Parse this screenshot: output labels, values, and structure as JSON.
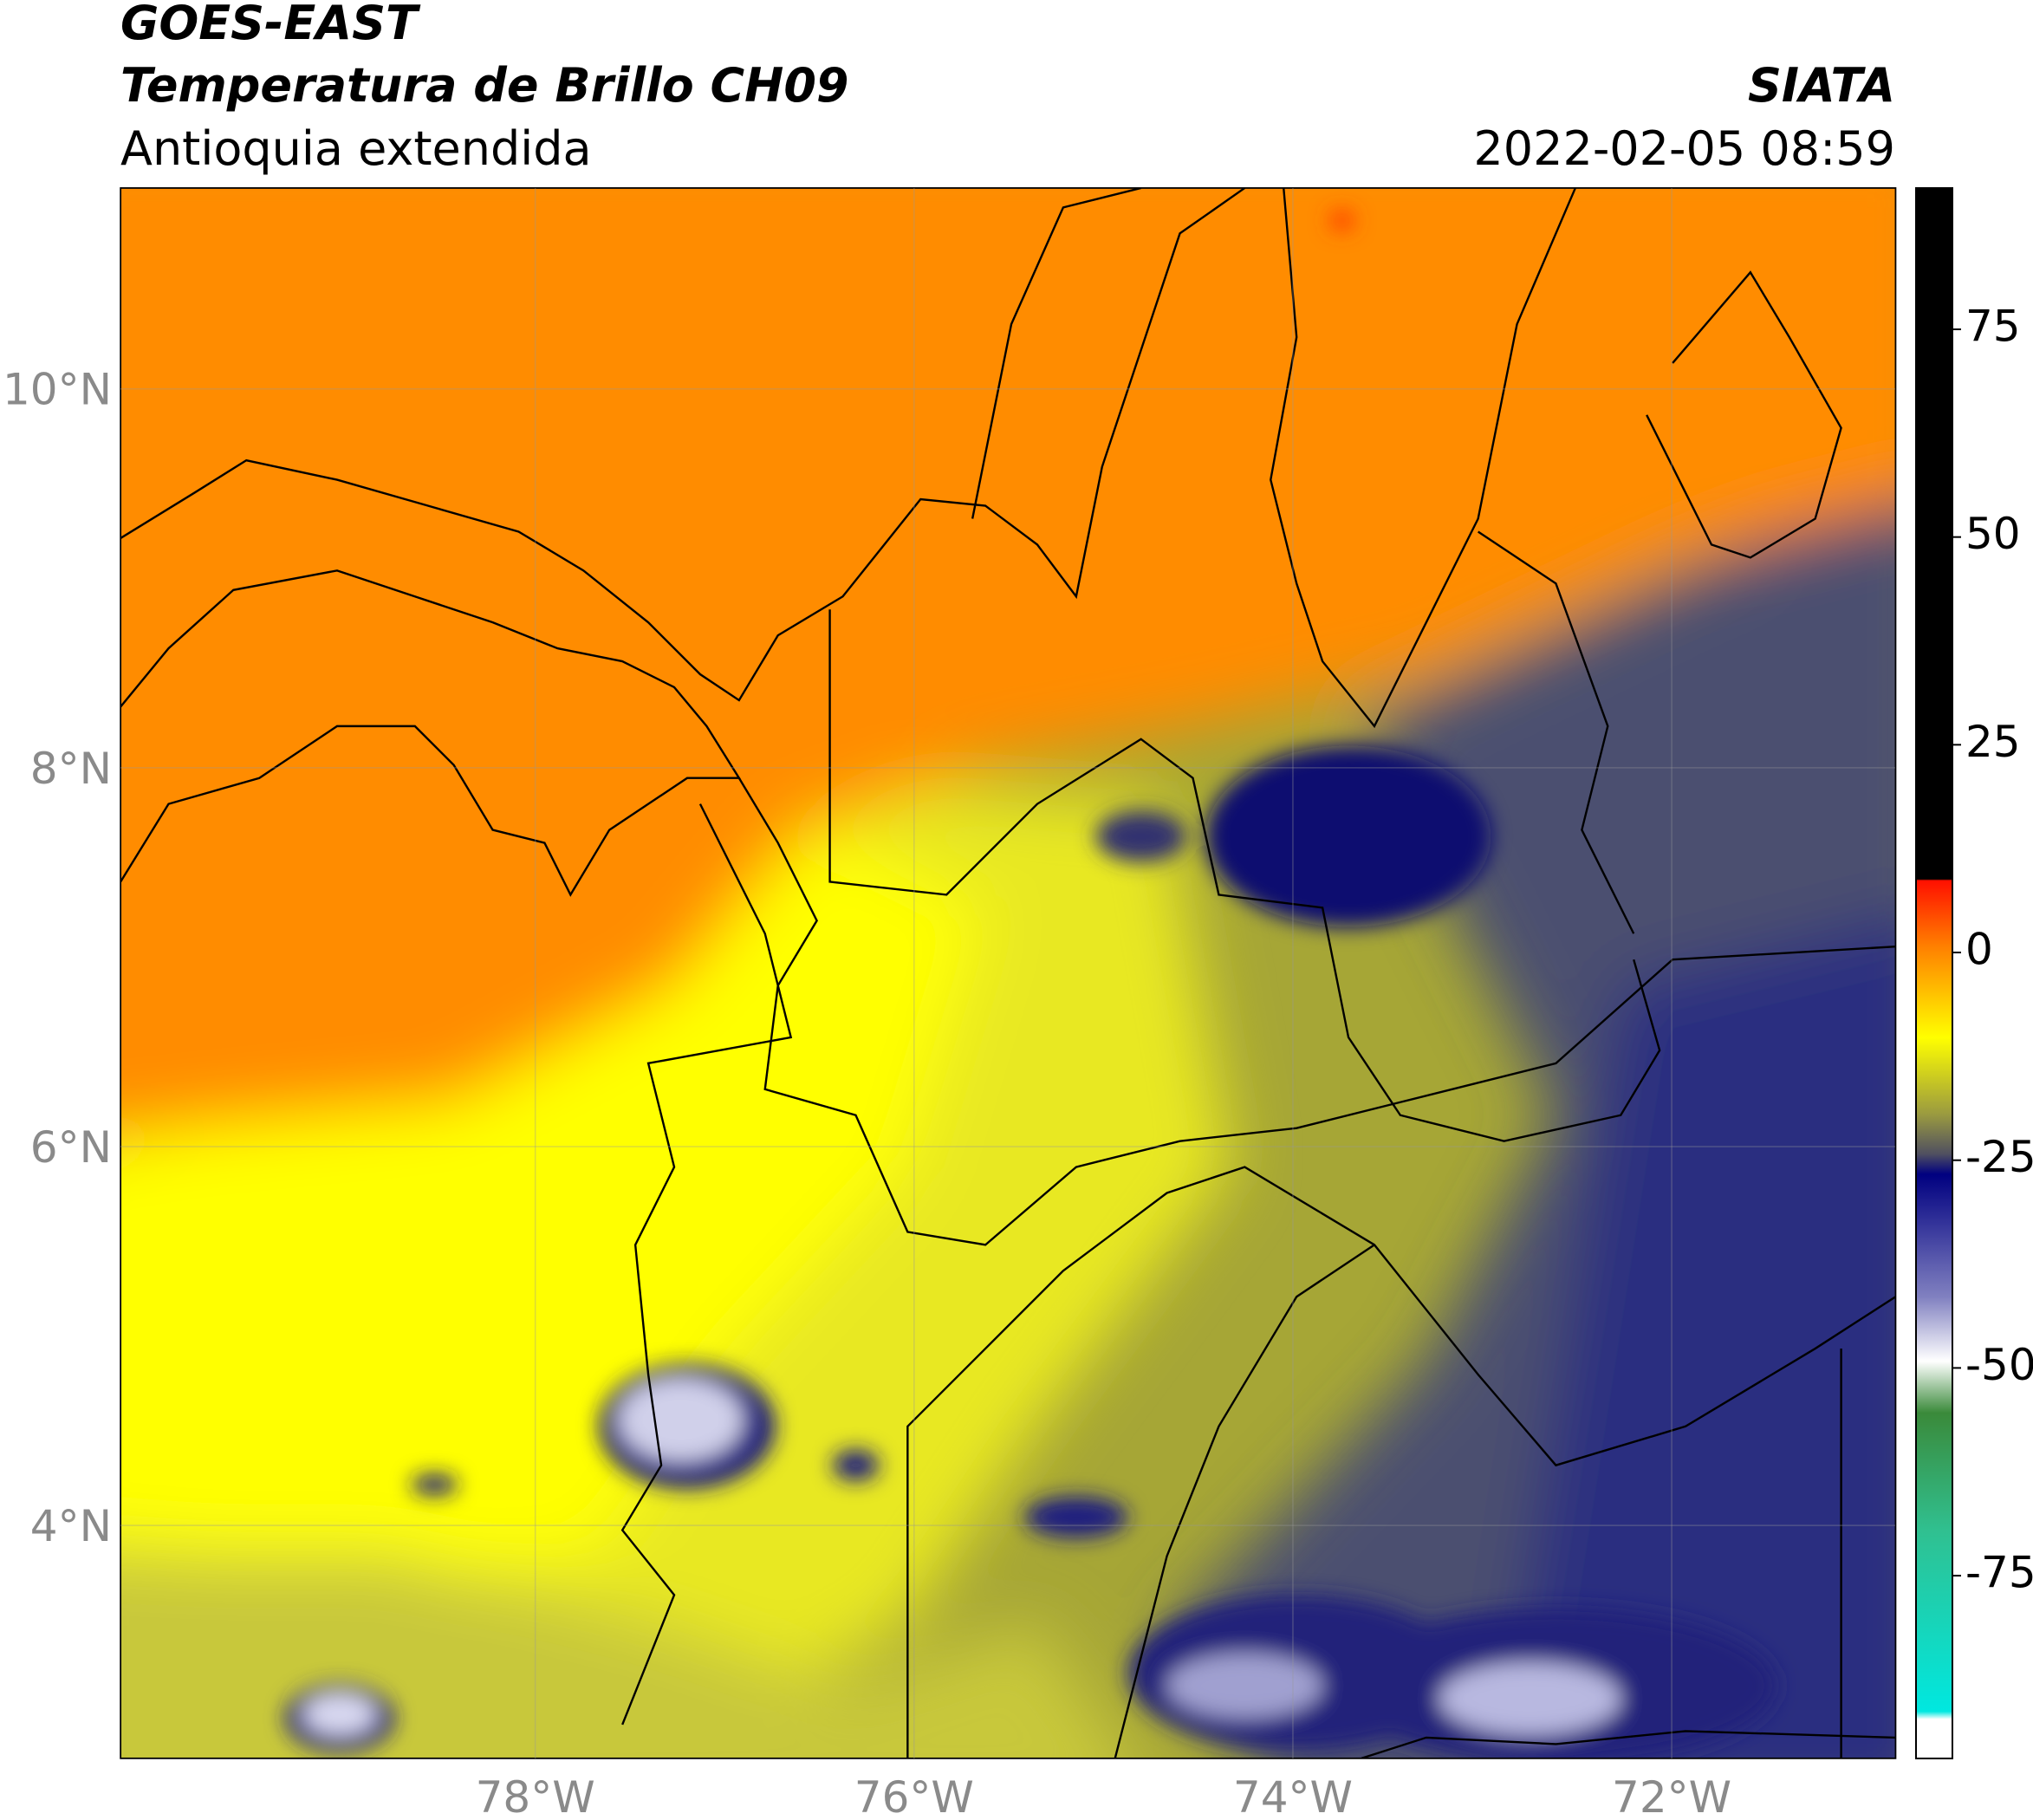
{
  "header": {
    "title": "GOES-EAST",
    "subtitle": "Temperatura de Brillo CH09",
    "region": "Antioquia extendida",
    "source": "SIATA",
    "datetime": "2022-02-05 08:59"
  },
  "map": {
    "lon_range": [
      -80.19,
      -70.82
    ],
    "lat_range": [
      2.77,
      11.06
    ],
    "lon_ticks": [
      {
        "value": -78,
        "label": "78°W"
      },
      {
        "value": -76,
        "label": "76°W"
      },
      {
        "value": -74,
        "label": "74°W"
      },
      {
        "value": -72,
        "label": "72°W"
      }
    ],
    "lat_ticks": [
      {
        "value": 10,
        "label": "10°N"
      },
      {
        "value": 8,
        "label": "8°N"
      },
      {
        "value": 6,
        "label": "6°N"
      },
      {
        "value": 4,
        "label": "4°N"
      }
    ],
    "grid": true
  },
  "colorbar": {
    "range": [
      -97,
      92
    ],
    "ticks": [
      75,
      50,
      25,
      0,
      -25,
      -50,
      -75
    ]
  }
}
